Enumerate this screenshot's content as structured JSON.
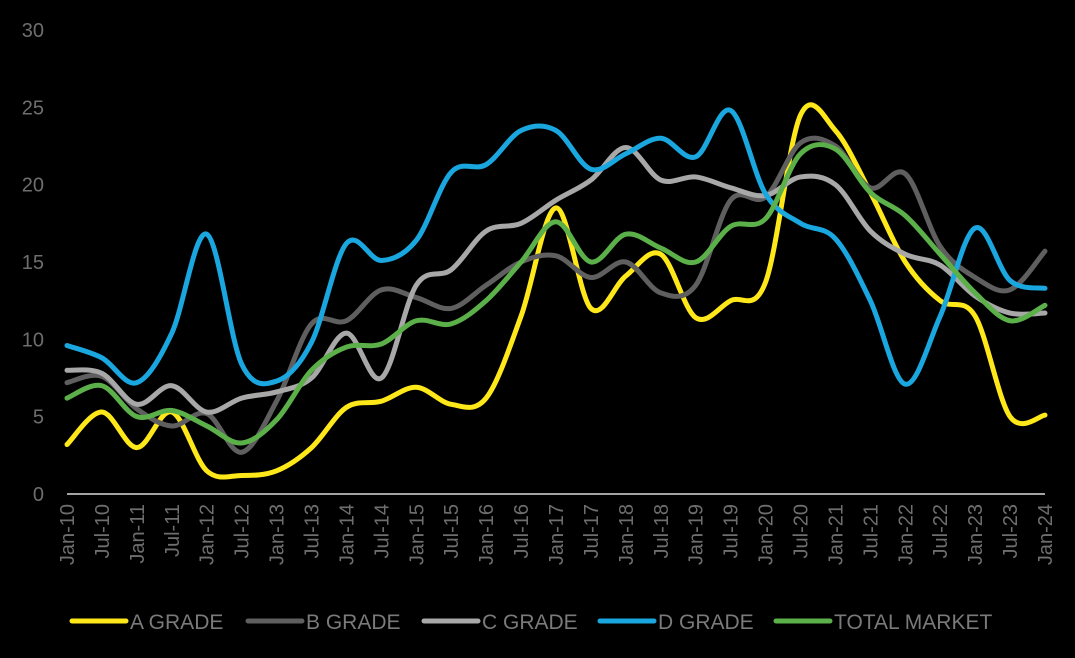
{
  "chart_data": {
    "type": "line",
    "title": "",
    "xlabel": "",
    "ylabel": "",
    "ylim": [
      0,
      30
    ],
    "yticks": [
      0,
      5,
      10,
      15,
      20,
      25,
      30
    ],
    "grid": false,
    "legend_position": "bottom",
    "x": [
      "Jan-10",
      "Jul-10",
      "Jan-11",
      "Jul-11",
      "Jan-12",
      "Jul-12",
      "Jan-13",
      "Jul-13",
      "Jan-14",
      "Jul-14",
      "Jan-15",
      "Jul-15",
      "Jan-16",
      "Jul-16",
      "Jan-17",
      "Jul-17",
      "Jan-18",
      "Jul-18",
      "Jan-19",
      "Jul-19",
      "Jan-20",
      "Jul-20",
      "Jan-21",
      "Jul-21",
      "Jan-22",
      "Jul-22",
      "Jan-23",
      "Jul-23",
      "Jan-24"
    ],
    "series": [
      {
        "name": "A GRADE",
        "color": "#FFE81A",
        "values": [
          3.2,
          5.3,
          3.0,
          5.3,
          1.5,
          1.2,
          1.5,
          3.0,
          5.6,
          6.0,
          6.9,
          5.8,
          6.2,
          11.5,
          18.5,
          12.0,
          14.1,
          15.5,
          11.4,
          12.5,
          13.7,
          24.5,
          23.5,
          19.5,
          15.0,
          12.5,
          11.5,
          5.0,
          5.1
        ]
      },
      {
        "name": "B GRADE",
        "color": "#5f5f5f",
        "values": [
          7.2,
          7.6,
          5.5,
          4.4,
          5.2,
          2.7,
          6.0,
          11.0,
          11.2,
          13.2,
          12.7,
          12.0,
          13.5,
          15.0,
          15.4,
          14.0,
          15.0,
          13.0,
          13.5,
          19.0,
          19.2,
          22.7,
          22.5,
          19.8,
          20.7,
          16.0,
          14.0,
          13.2,
          15.7
        ]
      },
      {
        "name": "C GRADE",
        "color": "#a8a8a8",
        "values": [
          8.0,
          7.8,
          5.8,
          7.0,
          5.3,
          6.2,
          6.6,
          7.5,
          10.4,
          7.5,
          13.5,
          14.5,
          17.0,
          17.5,
          19.0,
          20.3,
          22.4,
          20.3,
          20.5,
          19.8,
          19.3,
          20.5,
          20.0,
          17.0,
          15.5,
          14.8,
          12.8,
          11.7,
          11.7
        ]
      },
      {
        "name": "D GRADE",
        "color": "#1AA7E0",
        "values": [
          9.6,
          8.8,
          7.2,
          10.4,
          16.8,
          8.4,
          7.3,
          9.8,
          16.2,
          15.1,
          16.4,
          20.8,
          21.3,
          23.5,
          23.5,
          21.0,
          22.0,
          23.0,
          21.8,
          24.8,
          19.4,
          17.5,
          16.5,
          12.5,
          7.1,
          11.5,
          17.2,
          13.8,
          13.3
        ]
      },
      {
        "name": "TOTAL MARKET",
        "color": "#5CB04A",
        "values": [
          6.2,
          7.0,
          5.0,
          5.4,
          4.4,
          3.3,
          4.8,
          8.0,
          9.5,
          9.7,
          11.2,
          11.0,
          12.5,
          15.0,
          17.6,
          15.0,
          16.8,
          15.9,
          15.0,
          17.3,
          17.8,
          22.0,
          22.3,
          19.5,
          18.0,
          15.5,
          13.0,
          11.2,
          12.2
        ]
      }
    ]
  }
}
